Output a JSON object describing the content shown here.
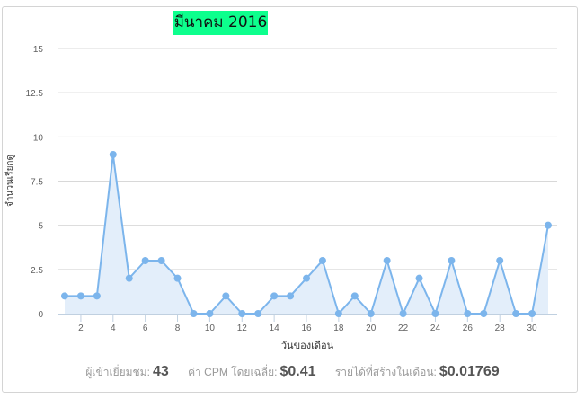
{
  "chart_data": {
    "type": "line",
    "title": "มีนาคม 2016",
    "xlabel": "วันของเดือน",
    "ylabel": "จำนวนเรียกดู",
    "x": [
      1,
      2,
      3,
      4,
      5,
      6,
      7,
      8,
      9,
      10,
      11,
      12,
      13,
      14,
      15,
      16,
      17,
      18,
      19,
      20,
      21,
      22,
      23,
      24,
      25,
      26,
      27,
      28,
      29,
      30,
      31
    ],
    "values": [
      1,
      1,
      1,
      9,
      2,
      3,
      3,
      2,
      0,
      0,
      1,
      0,
      0,
      1,
      1,
      2,
      3,
      0,
      1,
      0,
      3,
      0,
      2,
      0,
      3,
      0,
      0,
      3,
      0,
      0,
      5
    ],
    "xticks": [
      2,
      4,
      6,
      8,
      10,
      12,
      14,
      16,
      18,
      20,
      22,
      24,
      26,
      28,
      30
    ],
    "yticks": [
      "0",
      "2.5",
      "5",
      "7.5",
      "10",
      "12.5",
      "15"
    ],
    "ylim": [
      0,
      15
    ],
    "xlim": [
      1,
      31
    ],
    "grid": true,
    "area_fill": true,
    "line_color": "#7cb5ec",
    "fill_color": "#e3eefa",
    "title_bg": "#0dff8d"
  },
  "footer": {
    "visitors_label": "ผู้เข้าเยี่ยมชม:",
    "visitors_value": "43",
    "cpm_label": "ค่า CPM โดยเฉลี่ย:",
    "cpm_value": "$0.41",
    "revenue_label": "รายได้ที่สร้างในเดือน:",
    "revenue_value": "$0.01769"
  }
}
